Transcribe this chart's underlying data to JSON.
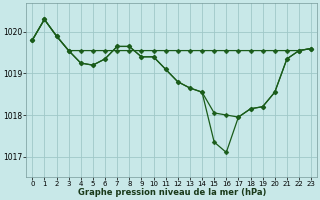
{
  "title": "Graphe pression niveau de la mer (hPa)",
  "bg_color": "#c8e8e8",
  "grid_color": "#a0c8c8",
  "line_color": "#1a5c1a",
  "xlim": [
    -0.5,
    23.5
  ],
  "ylim": [
    1016.5,
    1020.7
  ],
  "yticks": [
    1017,
    1018,
    1019,
    1020
  ],
  "xticks": [
    0,
    1,
    2,
    3,
    4,
    5,
    6,
    7,
    8,
    9,
    10,
    11,
    12,
    13,
    14,
    15,
    16,
    17,
    18,
    19,
    20,
    21,
    22,
    23
  ],
  "line1_x": [
    0,
    1,
    2,
    3,
    4,
    5,
    6,
    7,
    8,
    9,
    10,
    11,
    12,
    13,
    14,
    15,
    16,
    17,
    18,
    19,
    20,
    21,
    22,
    23
  ],
  "line1_y": [
    1019.8,
    1020.3,
    1019.9,
    1019.55,
    1019.55,
    1019.55,
    1019.55,
    1019.55,
    1019.55,
    1019.55,
    1019.55,
    1019.55,
    1019.55,
    1019.55,
    1019.55,
    1019.55,
    1019.55,
    1019.55,
    1019.55,
    1019.55,
    1019.55,
    1019.55,
    1019.55,
    1019.6
  ],
  "line2_x": [
    0,
    1,
    2,
    3,
    4,
    5,
    6,
    7,
    8,
    9,
    10,
    11,
    12,
    13,
    14,
    15,
    16,
    17,
    18,
    19,
    20,
    21,
    22,
    23
  ],
  "line2_y": [
    1019.8,
    1020.3,
    1019.9,
    1019.55,
    1019.25,
    1019.2,
    1019.35,
    1019.65,
    1019.65,
    1019.4,
    1019.4,
    1019.1,
    1018.8,
    1018.65,
    1018.55,
    1018.05,
    1018.0,
    1017.95,
    1018.15,
    1018.2,
    1018.55,
    1019.35,
    1019.55,
    1019.6
  ],
  "line3_x": [
    0,
    1,
    2,
    3,
    4,
    5,
    6,
    7,
    8,
    9,
    10,
    11,
    12,
    13,
    14,
    15,
    16,
    17,
    18,
    19,
    20,
    21,
    22,
    23
  ],
  "line3_y": [
    1019.8,
    1020.3,
    1019.9,
    1019.55,
    1019.25,
    1019.2,
    1019.35,
    1019.65,
    1019.65,
    1019.4,
    1019.4,
    1019.1,
    1018.8,
    1018.65,
    1018.55,
    1017.35,
    1017.1,
    1017.95,
    1018.15,
    1018.2,
    1018.55,
    1019.35,
    1019.55,
    1019.6
  ]
}
